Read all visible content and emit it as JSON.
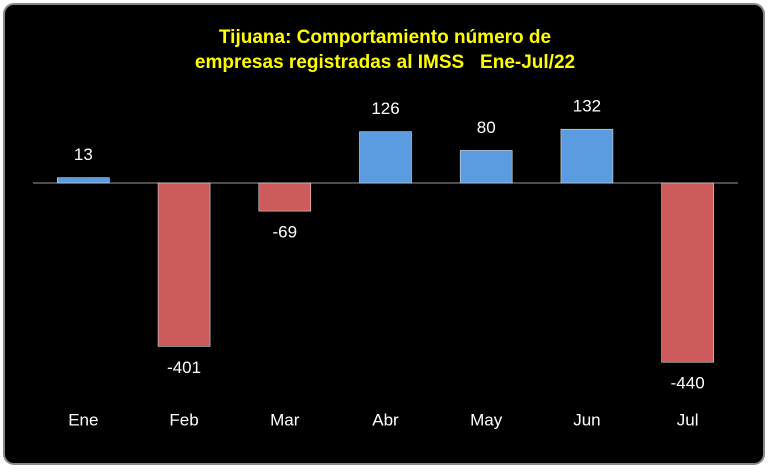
{
  "chart_data": {
    "type": "bar",
    "title": [
      "Tijuana: Comportamiento número de",
      "empresas registradas al IMSS   Ene-Jul/22"
    ],
    "categories": [
      "Ene",
      "Feb",
      "Mar",
      "Abr",
      "May",
      "Jun",
      "Jul"
    ],
    "values": [
      13,
      -401,
      -69,
      126,
      80,
      132,
      -440
    ],
    "color_positive": "#5b9be0",
    "color_negative": "#cd5b5b"
  }
}
